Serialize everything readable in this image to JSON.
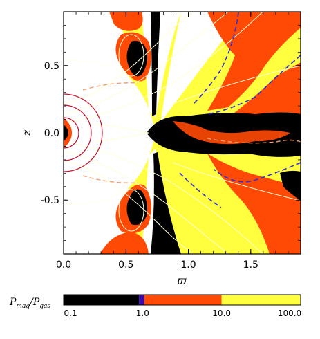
{
  "chart_data": {
    "type": "heatmap",
    "xlabel": "ϖ",
    "ylabel": "z",
    "xlim": [
      0.0,
      1.9
    ],
    "ylim": [
      -0.9,
      0.9
    ],
    "x_ticks": [
      "0.0",
      "0.5",
      "1.0",
      "1.5"
    ],
    "x_tick_values": [
      0.0,
      0.5,
      1.0,
      1.5
    ],
    "y_ticks": [
      "0.5",
      "0.0",
      "-0.5"
    ],
    "y_tick_values": [
      0.5,
      0.0,
      -0.5
    ],
    "grid": false,
    "colorbar": {
      "label_main": "P",
      "label_main_sub": "mag",
      "label_sep": "/",
      "label_den": "P",
      "label_den_sub": "gas",
      "scale": "log",
      "range": [
        0.1,
        100.0
      ],
      "tick_labels": [
        "0.1",
        "1.0",
        "10.0",
        "100.0"
      ],
      "tick_values": [
        0.1,
        1.0,
        10.0,
        100.0
      ],
      "bands": [
        {
          "from": 0.1,
          "to": 0.9,
          "color": "#000000"
        },
        {
          "from": 0.9,
          "to": 1.05,
          "color": "#3a0aa8"
        },
        {
          "from": 1.05,
          "to": 10.0,
          "color": "#ff4a05"
        },
        {
          "from": 10.0,
          "to": 100.0,
          "color": "#ffff40"
        }
      ]
    }
  },
  "colors": {
    "white": "#ffffff",
    "yellow": "#ffff40",
    "orange": "#ff4a05",
    "black": "#000000",
    "purple": "#3a0aa8",
    "contour_light": "#ffffd8",
    "contour_salmon": "#f0a070",
    "contour_blue": "#3030d0",
    "contour_red": "#c0102a"
  }
}
